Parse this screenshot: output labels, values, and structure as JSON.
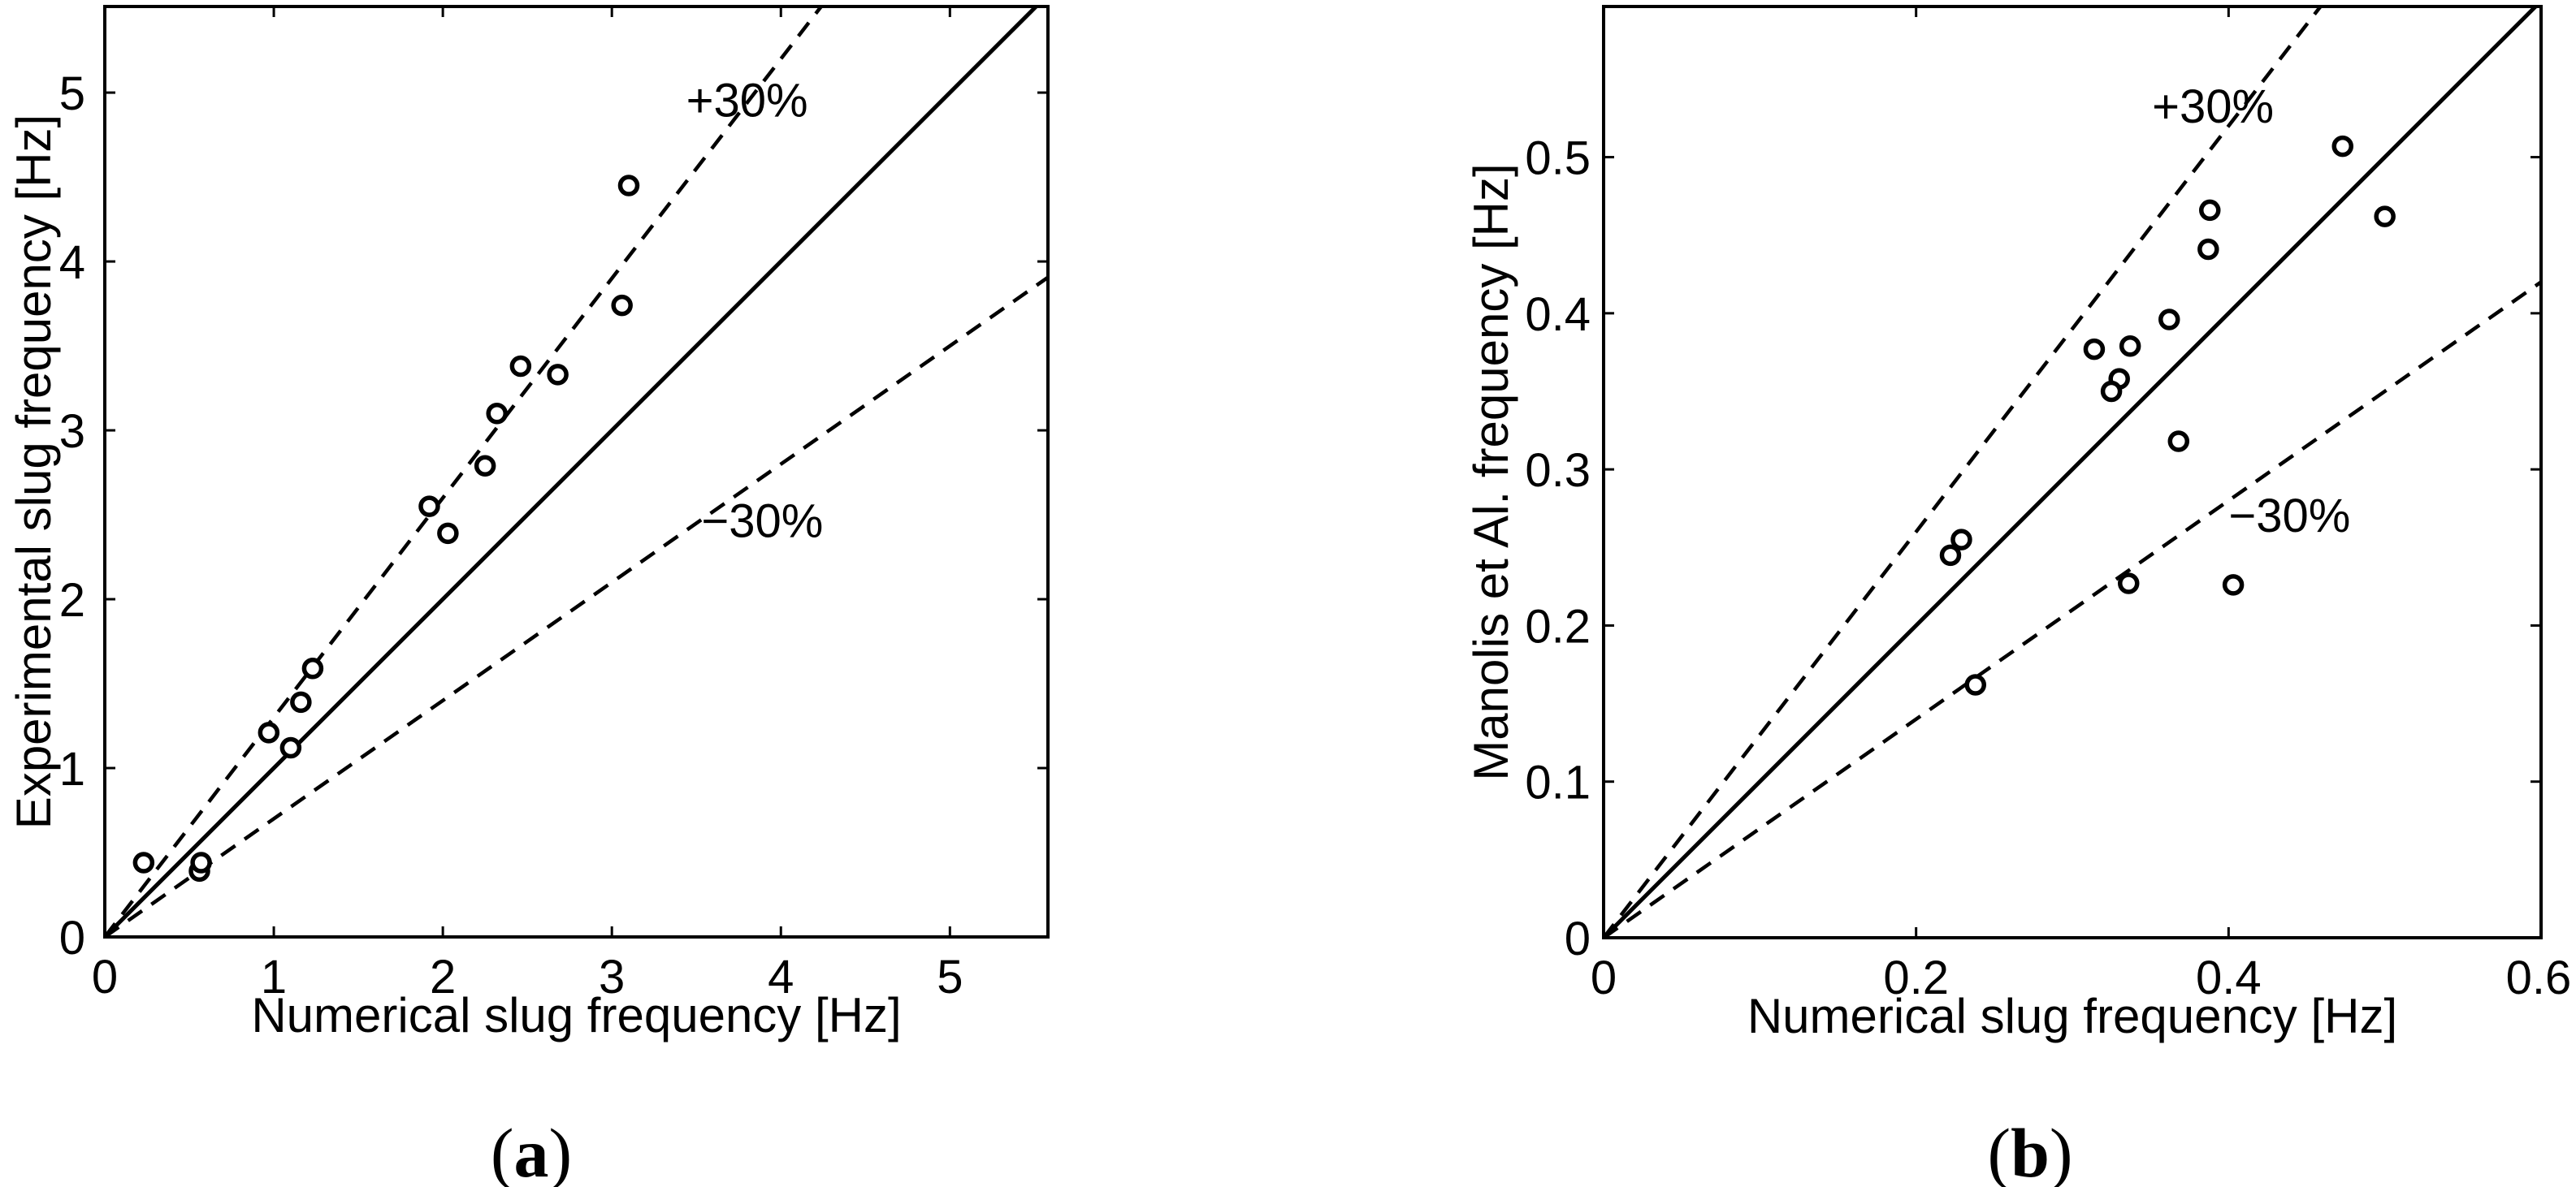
{
  "figure": {
    "background": "#ffffff",
    "ink_color": "#000000",
    "marker": "open-circle"
  },
  "chart_data": [
    {
      "type": "scatter",
      "panel": "a",
      "caption": "(a)",
      "caption_open": "(",
      "caption_letter": "a",
      "caption_close": ")",
      "xlabel": "Numerical slug frequency [Hz]",
      "ylabel": "Experimental slug frequency [Hz]",
      "xlim": [
        0,
        5.58
      ],
      "ylim": [
        0,
        5.51
      ],
      "xticks": [
        0,
        1,
        2,
        3,
        4,
        5
      ],
      "xtick_labels": [
        "0",
        "1",
        "2",
        "3",
        "4",
        "5"
      ],
      "yticks": [
        0,
        1,
        2,
        3,
        4,
        5
      ],
      "ytick_labels": [
        "0",
        "1",
        "2",
        "3",
        "4",
        "5"
      ],
      "grid": false,
      "legend": null,
      "ref_lines": [
        {
          "slope": 1.0,
          "style": "solid",
          "label": "",
          "label_xy": null
        },
        {
          "slope": 1.3,
          "style": "dashed",
          "label": "+30%",
          "label_xy": [
            3.8,
            4.96
          ]
        },
        {
          "slope": 0.7,
          "style": "dashed",
          "label": "−30%",
          "label_xy": [
            3.89,
            2.47
          ]
        }
      ],
      "points": [
        [
          0.23,
          0.44
        ],
        [
          0.56,
          0.39
        ],
        [
          0.57,
          0.44
        ],
        [
          0.97,
          1.21
        ],
        [
          1.1,
          1.12
        ],
        [
          1.16,
          1.39
        ],
        [
          1.23,
          1.59
        ],
        [
          1.92,
          2.55
        ],
        [
          2.03,
          2.39
        ],
        [
          2.25,
          2.79
        ],
        [
          2.32,
          3.1
        ],
        [
          2.46,
          3.38
        ],
        [
          2.68,
          3.33
        ],
        [
          3.06,
          3.74
        ],
        [
          3.1,
          4.45
        ]
      ]
    },
    {
      "type": "scatter",
      "panel": "b",
      "caption": "(b)",
      "caption_open": "(",
      "caption_letter": "b",
      "caption_close": ")",
      "xlabel": "Numerical slug frequency [Hz]",
      "ylabel": "Manolis et Al. frequency [Hz]",
      "xlim": [
        0,
        0.6
      ],
      "ylim": [
        0,
        0.5965
      ],
      "xticks": [
        0,
        0.2,
        0.4,
        0.6
      ],
      "xtick_labels": [
        "0",
        "0.2",
        "0.4",
        "0.6"
      ],
      "yticks": [
        0,
        0.1,
        0.2,
        0.3,
        0.4,
        0.5
      ],
      "ytick_labels": [
        "0",
        "0.1",
        "0.2",
        "0.3",
        "0.4",
        "0.5"
      ],
      "grid": false,
      "legend": null,
      "ref_lines": [
        {
          "slope": 1.0,
          "style": "solid",
          "label": "",
          "label_xy": null
        },
        {
          "slope": 1.3,
          "style": "dashed",
          "label": "+30%",
          "label_xy": [
            0.39,
            0.533
          ]
        },
        {
          "slope": 0.7,
          "style": "dashed",
          "label": "−30%",
          "label_xy": [
            0.439,
            0.271
          ]
        }
      ],
      "points": [
        [
          0.229,
          0.255
        ],
        [
          0.222,
          0.245
        ],
        [
          0.238,
          0.162
        ],
        [
          0.314,
          0.377
        ],
        [
          0.337,
          0.379
        ],
        [
          0.33,
          0.358
        ],
        [
          0.325,
          0.35
        ],
        [
          0.336,
          0.227
        ],
        [
          0.362,
          0.396
        ],
        [
          0.368,
          0.318
        ],
        [
          0.387,
          0.441
        ],
        [
          0.388,
          0.466
        ],
        [
          0.403,
          0.226
        ],
        [
          0.473,
          0.507
        ],
        [
          0.5,
          0.462
        ]
      ]
    }
  ]
}
